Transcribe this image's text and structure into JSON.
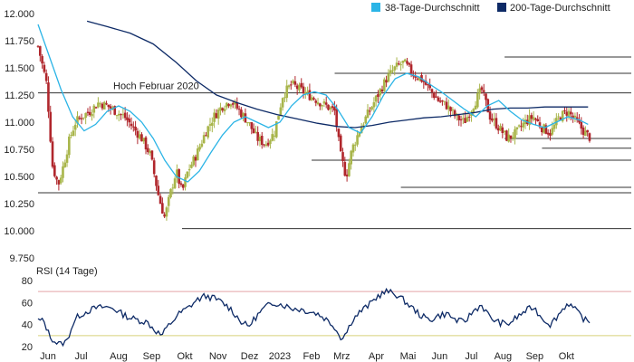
{
  "chart_data": {
    "type": "candlestick",
    "legend": {
      "placement": "top-right",
      "items": [
        {
          "label": "38-Tage-Durchschnitt",
          "color": "#2bb4e6"
        },
        {
          "label": "200-Tage-Durchschnitt",
          "color": "#0d2a66"
        }
      ]
    },
    "colors": {
      "up": "#a8b54a",
      "down": "#b0262c",
      "ma38": "#2bb4e6",
      "ma200": "#0d2a66",
      "rsi": "#0d2a66",
      "rsi_upper": "#e3a3a6",
      "rsi_lower": "#d8d17a",
      "level": "#333333"
    },
    "price_axis": {
      "ylim": [
        9.75,
        12.0
      ],
      "ticks": [
        "12.000",
        "11.750",
        "11.500",
        "11.250",
        "11.000",
        "10.750",
        "10.500",
        "10.250",
        "10.000",
        "9.750"
      ],
      "tick_values": [
        12.0,
        11.75,
        11.5,
        11.25,
        11.0,
        10.75,
        10.5,
        10.25,
        10.0,
        9.75
      ]
    },
    "x_axis": {
      "labels": [
        "Jun",
        "Jul",
        "Aug",
        "Sep",
        "Okt",
        "Nov",
        "Dez",
        "2023",
        "Feb",
        "Mrz",
        "Apr",
        "Mai",
        "Jun",
        "Jul",
        "Aug",
        "Sep",
        "Okt"
      ],
      "label_index": [
        0,
        1.15,
        2.45,
        3.6,
        4.75,
        5.9,
        7.0,
        8.05,
        9.15,
        10.2,
        11.4,
        12.5,
        13.6,
        14.7,
        15.8,
        16.9,
        18.0
      ]
    },
    "annotation": {
      "text": "Hoch Februar 2020",
      "value": 11.27
    },
    "levels": [
      {
        "value": 11.6,
        "from": 16.2,
        "to": 20.6
      },
      {
        "value": 11.45,
        "from": 10.3,
        "to": 20.6
      },
      {
        "value": 11.27,
        "from": 0.0,
        "to": 20.6
      },
      {
        "value": 10.85,
        "from": 16.2,
        "to": 20.6
      },
      {
        "value": 10.76,
        "from": 17.5,
        "to": 20.6
      },
      {
        "value": 10.65,
        "from": 9.5,
        "to": 20.6
      },
      {
        "value": 10.4,
        "from": 12.6,
        "to": 20.6
      },
      {
        "value": 10.35,
        "from": 0.0,
        "to": 20.6
      },
      {
        "value": 10.02,
        "from": 5.0,
        "to": 20.6
      }
    ],
    "ohlc_anchors": [
      [
        0.0,
        11.7
      ],
      [
        0.3,
        11.35
      ],
      [
        0.5,
        10.6
      ],
      [
        0.7,
        10.42
      ],
      [
        0.9,
        10.62
      ],
      [
        1.1,
        10.85
      ],
      [
        1.3,
        11.0
      ],
      [
        1.5,
        11.05
      ],
      [
        1.8,
        11.1
      ],
      [
        2.1,
        11.18
      ],
      [
        2.4,
        11.15
      ],
      [
        2.7,
        11.1
      ],
      [
        3.0,
        11.05
      ],
      [
        3.3,
        10.95
      ],
      [
        3.6,
        10.85
      ],
      [
        3.9,
        10.7
      ],
      [
        4.2,
        10.3
      ],
      [
        4.4,
        10.12
      ],
      [
        4.6,
        10.35
      ],
      [
        4.8,
        10.55
      ],
      [
        5.0,
        10.35
      ],
      [
        5.2,
        10.55
      ],
      [
        5.5,
        10.7
      ],
      [
        5.8,
        10.9
      ],
      [
        6.1,
        11.05
      ],
      [
        6.4,
        11.15
      ],
      [
        6.7,
        11.2
      ],
      [
        7.0,
        11.1
      ],
      [
        7.3,
        11.0
      ],
      [
        7.6,
        10.85
      ],
      [
        7.9,
        10.8
      ],
      [
        8.2,
        10.9
      ],
      [
        8.5,
        11.25
      ],
      [
        8.8,
        11.35
      ],
      [
        9.1,
        11.3
      ],
      [
        9.4,
        11.25
      ],
      [
        9.7,
        11.2
      ],
      [
        10.0,
        11.15
      ],
      [
        10.3,
        11.1
      ],
      [
        10.5,
        10.7
      ],
      [
        10.7,
        10.5
      ],
      [
        10.9,
        10.75
      ],
      [
        11.2,
        10.95
      ],
      [
        11.5,
        11.1
      ],
      [
        11.8,
        11.25
      ],
      [
        12.1,
        11.4
      ],
      [
        12.4,
        11.5
      ],
      [
        12.7,
        11.55
      ],
      [
        13.0,
        11.45
      ],
      [
        13.3,
        11.4
      ],
      [
        13.6,
        11.3
      ],
      [
        13.9,
        11.2
      ],
      [
        14.2,
        11.15
      ],
      [
        14.5,
        11.05
      ],
      [
        14.8,
        11.0
      ],
      [
        15.1,
        11.15
      ],
      [
        15.4,
        11.3
      ],
      [
        15.7,
        11.05
      ],
      [
        16.0,
        10.95
      ],
      [
        16.3,
        10.85
      ],
      [
        16.6,
        10.9
      ],
      [
        16.9,
        11.0
      ],
      [
        17.2,
        11.05
      ],
      [
        17.5,
        10.95
      ],
      [
        17.8,
        10.9
      ],
      [
        18.1,
        11.05
      ],
      [
        18.4,
        11.1
      ],
      [
        18.7,
        11.0
      ],
      [
        19.0,
        10.9
      ],
      [
        19.2,
        10.85
      ]
    ],
    "ma38": [
      [
        0.0,
        11.9
      ],
      [
        0.4,
        11.6
      ],
      [
        0.8,
        11.3
      ],
      [
        1.2,
        11.05
      ],
      [
        1.6,
        10.92
      ],
      [
        2.0,
        10.98
      ],
      [
        2.4,
        11.1
      ],
      [
        2.8,
        11.15
      ],
      [
        3.2,
        11.1
      ],
      [
        3.6,
        11.0
      ],
      [
        4.0,
        10.85
      ],
      [
        4.4,
        10.65
      ],
      [
        4.8,
        10.5
      ],
      [
        5.2,
        10.45
      ],
      [
        5.6,
        10.55
      ],
      [
        6.0,
        10.72
      ],
      [
        6.4,
        10.88
      ],
      [
        6.8,
        11.0
      ],
      [
        7.2,
        11.05
      ],
      [
        7.6,
        11.0
      ],
      [
        8.0,
        10.95
      ],
      [
        8.4,
        11.0
      ],
      [
        8.8,
        11.15
      ],
      [
        9.2,
        11.25
      ],
      [
        9.6,
        11.28
      ],
      [
        10.0,
        11.25
      ],
      [
        10.4,
        11.12
      ],
      [
        10.8,
        10.95
      ],
      [
        11.2,
        10.9
      ],
      [
        11.6,
        11.05
      ],
      [
        12.0,
        11.25
      ],
      [
        12.4,
        11.4
      ],
      [
        12.8,
        11.45
      ],
      [
        13.2,
        11.42
      ],
      [
        13.6,
        11.35
      ],
      [
        14.0,
        11.28
      ],
      [
        14.4,
        11.2
      ],
      [
        14.8,
        11.12
      ],
      [
        15.2,
        11.05
      ],
      [
        15.6,
        11.15
      ],
      [
        16.0,
        11.2
      ],
      [
        16.4,
        11.1
      ],
      [
        16.8,
        11.02
      ],
      [
        17.2,
        10.98
      ],
      [
        17.6,
        10.95
      ],
      [
        18.0,
        11.0
      ],
      [
        18.4,
        11.05
      ],
      [
        18.8,
        11.02
      ],
      [
        19.1,
        10.98
      ]
    ],
    "ma200": [
      [
        1.7,
        11.93
      ],
      [
        2.4,
        11.88
      ],
      [
        3.2,
        11.82
      ],
      [
        4.0,
        11.72
      ],
      [
        4.8,
        11.55
      ],
      [
        5.5,
        11.38
      ],
      [
        6.2,
        11.25
      ],
      [
        6.9,
        11.18
      ],
      [
        7.6,
        11.12
      ],
      [
        8.3,
        11.07
      ],
      [
        9.0,
        11.03
      ],
      [
        9.7,
        10.99
      ],
      [
        10.4,
        10.96
      ],
      [
        11.0,
        10.95
      ],
      [
        11.6,
        10.97
      ],
      [
        12.2,
        11.0
      ],
      [
        12.8,
        11.02
      ],
      [
        13.4,
        11.04
      ],
      [
        14.0,
        11.05
      ],
      [
        14.6,
        11.07
      ],
      [
        15.2,
        11.09
      ],
      [
        15.8,
        11.12
      ],
      [
        16.4,
        11.13
      ],
      [
        17.0,
        11.13
      ],
      [
        17.6,
        11.14
      ],
      [
        18.2,
        11.14
      ],
      [
        18.8,
        11.14
      ],
      [
        19.1,
        11.14
      ]
    ],
    "rsi": {
      "title": "RSI (14 Tage)",
      "ylim": [
        20,
        80
      ],
      "ticks": [
        "80",
        "60",
        "40",
        "20"
      ],
      "tick_values": [
        80,
        60,
        40,
        20
      ],
      "upper": 70,
      "lower": 30,
      "anchors": [
        [
          0.0,
          44
        ],
        [
          0.2,
          43
        ],
        [
          0.4,
          30
        ],
        [
          0.6,
          24
        ],
        [
          0.8,
          22
        ],
        [
          1.0,
          25
        ],
        [
          1.2,
          40
        ],
        [
          1.4,
          48
        ],
        [
          1.7,
          52
        ],
        [
          2.0,
          55
        ],
        [
          2.3,
          56
        ],
        [
          2.6,
          55
        ],
        [
          2.9,
          50
        ],
        [
          3.2,
          46
        ],
        [
          3.5,
          44
        ],
        [
          3.8,
          42
        ],
        [
          4.1,
          34
        ],
        [
          4.3,
          30
        ],
        [
          4.5,
          38
        ],
        [
          4.7,
          44
        ],
        [
          4.9,
          50
        ],
        [
          5.2,
          55
        ],
        [
          5.5,
          62
        ],
        [
          5.8,
          66
        ],
        [
          6.1,
          64
        ],
        [
          6.4,
          60
        ],
        [
          6.7,
          54
        ],
        [
          7.0,
          44
        ],
        [
          7.3,
          38
        ],
        [
          7.6,
          48
        ],
        [
          7.9,
          56
        ],
        [
          8.2,
          60
        ],
        [
          8.5,
          58
        ],
        [
          8.8,
          55
        ],
        [
          9.1,
          54
        ],
        [
          9.4,
          52
        ],
        [
          9.7,
          50
        ],
        [
          10.0,
          45
        ],
        [
          10.3,
          38
        ],
        [
          10.5,
          28
        ],
        [
          10.7,
          32
        ],
        [
          10.9,
          44
        ],
        [
          11.2,
          52
        ],
        [
          11.5,
          58
        ],
        [
          11.8,
          66
        ],
        [
          12.1,
          70
        ],
        [
          12.4,
          68
        ],
        [
          12.7,
          62
        ],
        [
          13.0,
          55
        ],
        [
          13.3,
          48
        ],
        [
          13.6,
          44
        ],
        [
          13.9,
          48
        ],
        [
          14.2,
          50
        ],
        [
          14.5,
          44
        ],
        [
          14.8,
          42
        ],
        [
          15.1,
          52
        ],
        [
          15.4,
          58
        ],
        [
          15.7,
          46
        ],
        [
          16.0,
          42
        ],
        [
          16.3,
          40
        ],
        [
          16.6,
          46
        ],
        [
          16.9,
          52
        ],
        [
          17.2,
          56
        ],
        [
          17.5,
          46
        ],
        [
          17.8,
          40
        ],
        [
          18.1,
          50
        ],
        [
          18.4,
          60
        ],
        [
          18.7,
          52
        ],
        [
          19.0,
          44
        ],
        [
          19.2,
          41
        ]
      ]
    }
  }
}
